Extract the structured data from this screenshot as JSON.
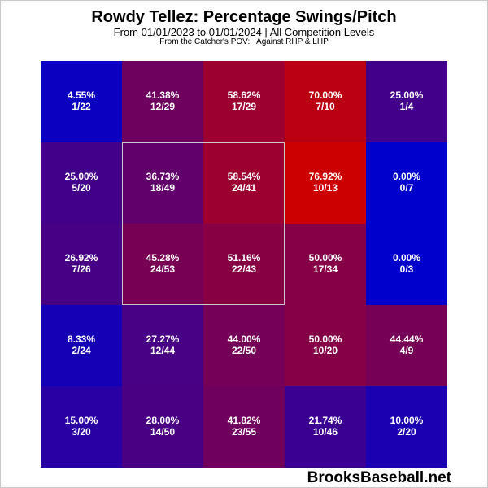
{
  "title": "Rowdy Tellez: Percentage Swings/Pitch",
  "subtitle": "From 01/01/2023 to 01/01/2024 | All Competition Levels",
  "note": "From the Catcher's POV:   Against RHP & LHP",
  "watermark": "BrooksBaseball.net",
  "colors": {
    "low": "#0000cc",
    "high": "#cc0000",
    "zone_border": "#c9c9c9"
  },
  "chart_data": {
    "type": "heatmap",
    "title": "Rowdy Tellez: Percentage Swings/Pitch",
    "subtitle": "From 01/01/2023 to 01/01/2024 | All Competition Levels",
    "rows": 5,
    "cols": 5,
    "strike_zone": {
      "rows": [
        1,
        3
      ],
      "cols": [
        1,
        3
      ]
    },
    "cells": [
      [
        {
          "pct": "4.55%",
          "count": "1/22",
          "value": 4.55
        },
        {
          "pct": "41.38%",
          "count": "12/29",
          "value": 41.38
        },
        {
          "pct": "58.62%",
          "count": "17/29",
          "value": 58.62
        },
        {
          "pct": "70.00%",
          "count": "7/10",
          "value": 70.0
        },
        {
          "pct": "25.00%",
          "count": "1/4",
          "value": 25.0
        }
      ],
      [
        {
          "pct": "25.00%",
          "count": "5/20",
          "value": 25.0
        },
        {
          "pct": "36.73%",
          "count": "18/49",
          "value": 36.73
        },
        {
          "pct": "58.54%",
          "count": "24/41",
          "value": 58.54
        },
        {
          "pct": "76.92%",
          "count": "10/13",
          "value": 76.92
        },
        {
          "pct": "0.00%",
          "count": "0/7",
          "value": 0.0
        }
      ],
      [
        {
          "pct": "26.92%",
          "count": "7/26",
          "value": 26.92
        },
        {
          "pct": "45.28%",
          "count": "24/53",
          "value": 45.28
        },
        {
          "pct": "51.16%",
          "count": "22/43",
          "value": 51.16
        },
        {
          "pct": "50.00%",
          "count": "17/34",
          "value": 50.0
        },
        {
          "pct": "0.00%",
          "count": "0/3",
          "value": 0.0
        }
      ],
      [
        {
          "pct": "8.33%",
          "count": "2/24",
          "value": 8.33
        },
        {
          "pct": "27.27%",
          "count": "12/44",
          "value": 27.27
        },
        {
          "pct": "44.00%",
          "count": "22/50",
          "value": 44.0
        },
        {
          "pct": "50.00%",
          "count": "10/20",
          "value": 50.0
        },
        {
          "pct": "44.44%",
          "count": "4/9",
          "value": 44.44
        }
      ],
      [
        {
          "pct": "15.00%",
          "count": "3/20",
          "value": 15.0
        },
        {
          "pct": "28.00%",
          "count": "14/50",
          "value": 28.0
        },
        {
          "pct": "41.82%",
          "count": "23/55",
          "value": 41.82
        },
        {
          "pct": "21.74%",
          "count": "10/46",
          "value": 21.74
        },
        {
          "pct": "10.00%",
          "count": "2/20",
          "value": 10.0
        }
      ]
    ]
  }
}
